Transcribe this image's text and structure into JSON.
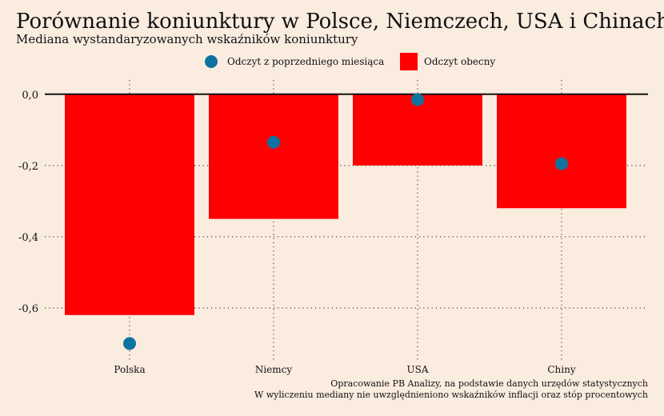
{
  "chart_data": {
    "type": "bar",
    "title": "Porównanie koniunktury w Polsce, Niemczech, USA i Chinach",
    "subtitle": "Mediana wystandaryzowanych wskaźników koniunktury",
    "categories": [
      "Polska",
      "Niemcy",
      "USA",
      "Chiny"
    ],
    "series": [
      {
        "name": "Odczyt z poprzedniego miesiąca",
        "kind": "point",
        "color": "#0e73a0",
        "values": [
          -0.7,
          -0.135,
          -0.015,
          -0.195
        ]
      },
      {
        "name": "Odczyt obecny",
        "kind": "bar",
        "color": "#ff0000",
        "values": [
          -0.62,
          -0.35,
          -0.2,
          -0.32
        ]
      }
    ],
    "yticks": [
      0,
      -0.2,
      -0.4,
      -0.6
    ],
    "ytick_labels": [
      "0,0",
      "-0,2",
      "-0,4",
      "-0,6"
    ],
    "ylim": [
      -0.735,
      0.04
    ],
    "grid": true,
    "legend_position": "top-center",
    "footnotes": [
      "Opracowanie PB Analizy, na podstawie danych urzędów statystycznych",
      "W wyliczeniu mediany nie uwzględnieniono wskaźników inflacji oraz stóp procentowych"
    ]
  }
}
